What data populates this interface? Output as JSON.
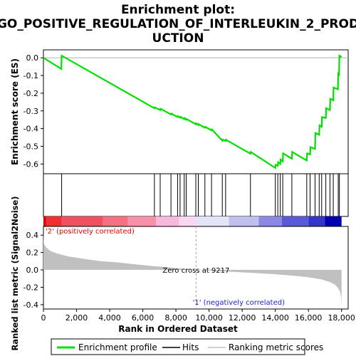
{
  "chart_data": {
    "type": "line",
    "title_lines": [
      "Enrichment plot:",
      "GO_POSITIVE_REGULATION_OF_INTERLEUKIN_2_PROD",
      "UCTION"
    ],
    "x_label": "Rank in Ordered Dataset",
    "xlim": [
      0,
      18400
    ],
    "x_ticks": [
      0,
      2000,
      4000,
      6000,
      8000,
      10000,
      12000,
      14000,
      16000,
      18000
    ],
    "x_tick_labels": [
      "0",
      "2,000",
      "4,000",
      "6,000",
      "8,000",
      "10,000",
      "12,000",
      "14,000",
      "16,000",
      "18,000"
    ],
    "es_panel": {
      "y_label": "Enrichment score (ES)",
      "ylim": [
        -0.655,
        0.045
      ],
      "y_ticks": [
        0.0,
        -0.1,
        -0.2,
        -0.3,
        -0.4,
        -0.5,
        -0.6
      ],
      "y_tick_labels": [
        "0.0",
        "-0.1",
        "-0.2",
        "-0.3",
        "-0.4",
        "-0.5",
        "-0.6"
      ],
      "series_name": "Enrichment profile",
      "color": "#00e000",
      "points": [
        [
          0,
          0.0
        ],
        [
          1080,
          -0.063
        ],
        [
          1100,
          0.012
        ],
        [
          6700,
          -0.285
        ],
        [
          6720,
          -0.28
        ],
        [
          7050,
          -0.295
        ],
        [
          7070,
          -0.288
        ],
        [
          7700,
          -0.32
        ],
        [
          7720,
          -0.315
        ],
        [
          8100,
          -0.335
        ],
        [
          8120,
          -0.33
        ],
        [
          8250,
          -0.338
        ],
        [
          8270,
          -0.333
        ],
        [
          8500,
          -0.346
        ],
        [
          8520,
          -0.341
        ],
        [
          8620,
          -0.35
        ],
        [
          8640,
          -0.346
        ],
        [
          9200,
          -0.375
        ],
        [
          9220,
          -0.37
        ],
        [
          9350,
          -0.38
        ],
        [
          9370,
          -0.375
        ],
        [
          9750,
          -0.395
        ],
        [
          9770,
          -0.39
        ],
        [
          10150,
          -0.41
        ],
        [
          10170,
          -0.405
        ],
        [
          10800,
          -0.468
        ],
        [
          10820,
          -0.462
        ],
        [
          11000,
          -0.47
        ],
        [
          11020,
          -0.463
        ],
        [
          12500,
          -0.542
        ],
        [
          12520,
          -0.532
        ],
        [
          14000,
          -0.622
        ],
        [
          14020,
          -0.605
        ],
        [
          14150,
          -0.61
        ],
        [
          14170,
          -0.59
        ],
        [
          14300,
          -0.6
        ],
        [
          14320,
          -0.575
        ],
        [
          14450,
          -0.585
        ],
        [
          14470,
          -0.54
        ],
        [
          15000,
          -0.57
        ],
        [
          15020,
          -0.532
        ],
        [
          15900,
          -0.58
        ],
        [
          15920,
          -0.54
        ],
        [
          16100,
          -0.545
        ],
        [
          16120,
          -0.505
        ],
        [
          16400,
          -0.515
        ],
        [
          16420,
          -0.425
        ],
        [
          16650,
          -0.435
        ],
        [
          16670,
          -0.382
        ],
        [
          16800,
          -0.39
        ],
        [
          16820,
          -0.335
        ],
        [
          17050,
          -0.34
        ],
        [
          17070,
          -0.285
        ],
        [
          17300,
          -0.295
        ],
        [
          17320,
          -0.232
        ],
        [
          17500,
          -0.24
        ],
        [
          17520,
          -0.168
        ],
        [
          17780,
          -0.178
        ],
        [
          17800,
          -0.09
        ],
        [
          17850,
          -0.095
        ],
        [
          17870,
          0.012
        ],
        [
          18000,
          0.004
        ]
      ]
    },
    "hits_panel": {
      "series_name": "Hits",
      "color": "#000000",
      "hits": [
        1100,
        6700,
        7050,
        7700,
        8100,
        8250,
        8500,
        8620,
        9200,
        9350,
        9750,
        10150,
        10800,
        11000,
        12500,
        14000,
        14150,
        14300,
        14450,
        15000,
        15900,
        16100,
        16400,
        16650,
        16800,
        17050,
        17300,
        17500,
        17800,
        17870
      ]
    },
    "color_bar": {
      "segments": [
        {
          "from": 0,
          "to": 150,
          "color": "#e00000"
        },
        {
          "from": 150,
          "to": 1100,
          "color": "#f03030"
        },
        {
          "from": 1100,
          "to": 3600,
          "color": "#f05060"
        },
        {
          "from": 3600,
          "to": 5100,
          "color": "#f57080"
        },
        {
          "from": 5100,
          "to": 6800,
          "color": "#f890a8"
        },
        {
          "from": 6800,
          "to": 8200,
          "color": "#f8b8dc"
        },
        {
          "from": 8200,
          "to": 9217,
          "color": "#f8d8f0"
        },
        {
          "from": 9217,
          "to": 11200,
          "color": "#e4e4f8"
        },
        {
          "from": 11200,
          "to": 13000,
          "color": "#c0c0f0"
        },
        {
          "from": 13000,
          "to": 14400,
          "color": "#8a8ae6"
        },
        {
          "from": 14400,
          "to": 16000,
          "color": "#5a5ad8"
        },
        {
          "from": 16000,
          "to": 17000,
          "color": "#3434c8"
        },
        {
          "from": 17000,
          "to": 18000,
          "color": "#0000b0"
        }
      ]
    },
    "metric_panel": {
      "y_label": "Ranked list metric (Signal2Noise)",
      "ylim": [
        -0.45,
        0.5
      ],
      "y_ticks": [
        0.4,
        0.2,
        0.0,
        -0.2,
        -0.4
      ],
      "y_tick_labels": [
        "0.4",
        "0.2",
        "0.0",
        "-0.2",
        "-0.4"
      ],
      "series_name": "Ranking metric scores",
      "fill_color": "#c0c0c0",
      "points": [
        [
          0,
          0.43
        ],
        [
          30,
          0.3
        ],
        [
          150,
          0.26
        ],
        [
          400,
          0.22
        ],
        [
          800,
          0.19
        ],
        [
          1500,
          0.155
        ],
        [
          2500,
          0.125
        ],
        [
          3500,
          0.1
        ],
        [
          4500,
          0.085
        ],
        [
          5500,
          0.065
        ],
        [
          6500,
          0.045
        ],
        [
          7500,
          0.03
        ],
        [
          8500,
          0.012
        ],
        [
          9217,
          0.0
        ],
        [
          10000,
          -0.008
        ],
        [
          11000,
          -0.018
        ],
        [
          12000,
          -0.028
        ],
        [
          13000,
          -0.038
        ],
        [
          14000,
          -0.05
        ],
        [
          15000,
          -0.065
        ],
        [
          16000,
          -0.085
        ],
        [
          16800,
          -0.11
        ],
        [
          17300,
          -0.14
        ],
        [
          17600,
          -0.17
        ],
        [
          17800,
          -0.21
        ],
        [
          17920,
          -0.26
        ],
        [
          17980,
          -0.32
        ],
        [
          18000,
          -0.43
        ]
      ],
      "zero_cross_label": "Zero cross at 9217",
      "zero_cross_x": 9217,
      "pos_label": "'2' (positively correlated)",
      "pos_color": "#e00000",
      "neg_label": "'1' (negatively correlated)",
      "neg_color": "#2020d0"
    },
    "legend": {
      "items": [
        {
          "label": "Enrichment profile",
          "color": "#00e000",
          "style": "thick"
        },
        {
          "label": "Hits",
          "color": "#000000",
          "style": "thin"
        },
        {
          "label": "Ranking metric scores",
          "color": "#c0c0c0",
          "style": "thin"
        }
      ]
    }
  }
}
